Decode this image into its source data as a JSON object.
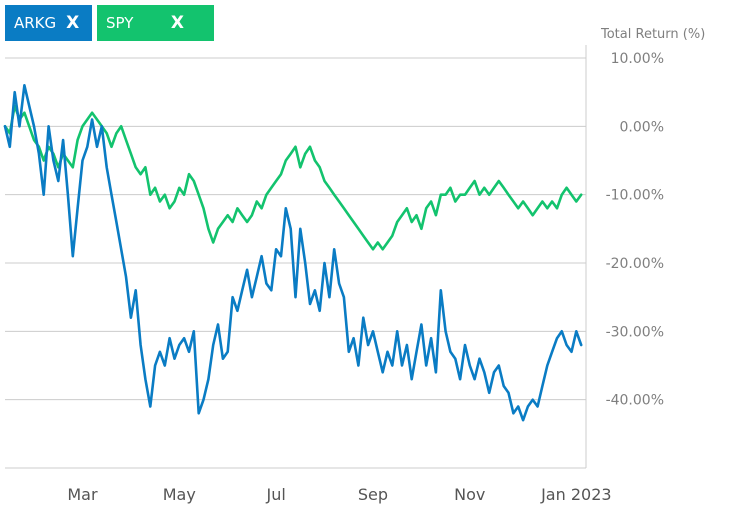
{
  "legend": {
    "chips": [
      {
        "label": "ARKG",
        "close": "X",
        "color": "#0a7cc4"
      },
      {
        "label": "SPY",
        "close": "X",
        "color": "#13c36e"
      }
    ]
  },
  "chart_data": {
    "type": "line",
    "ylabel": "Total Return (%)",
    "ylim": [
      -50,
      10
    ],
    "y_ticks": [
      "10.00%",
      "0.00%",
      "-10.00%",
      "-20.00%",
      "-30.00%",
      "-40.00%"
    ],
    "y_tick_values": [
      10,
      0,
      -10,
      -20,
      -30,
      -40
    ],
    "x_ticks": [
      "Mar",
      "May",
      "Jul",
      "Sep",
      "Nov",
      "Jan 2023"
    ],
    "x_tick_positions": [
      1.6,
      3.6,
      5.6,
      7.6,
      9.6,
      11.8
    ],
    "xlim": [
      0,
      12
    ],
    "series": [
      {
        "name": "ARKG",
        "color": "#0a7cc4",
        "x": [
          0.0,
          0.1,
          0.2,
          0.3,
          0.4,
          0.5,
          0.6,
          0.7,
          0.8,
          0.9,
          1.0,
          1.1,
          1.2,
          1.3,
          1.4,
          1.5,
          1.6,
          1.7,
          1.8,
          1.9,
          2.0,
          2.1,
          2.2,
          2.3,
          2.4,
          2.5,
          2.6,
          2.7,
          2.8,
          2.9,
          3.0,
          3.1,
          3.2,
          3.3,
          3.4,
          3.5,
          3.6,
          3.7,
          3.8,
          3.9,
          4.0,
          4.1,
          4.2,
          4.3,
          4.4,
          4.5,
          4.6,
          4.7,
          4.8,
          4.9,
          5.0,
          5.1,
          5.2,
          5.3,
          5.4,
          5.5,
          5.6,
          5.7,
          5.8,
          5.9,
          6.0,
          6.1,
          6.2,
          6.3,
          6.4,
          6.5,
          6.6,
          6.7,
          6.8,
          6.9,
          7.0,
          7.1,
          7.2,
          7.3,
          7.4,
          7.5,
          7.6,
          7.7,
          7.8,
          7.9,
          8.0,
          8.1,
          8.2,
          8.3,
          8.4,
          8.5,
          8.6,
          8.7,
          8.8,
          8.9,
          9.0,
          9.1,
          9.2,
          9.3,
          9.4,
          9.5,
          9.6,
          9.7,
          9.8,
          9.9,
          10.0,
          10.1,
          10.2,
          10.3,
          10.4,
          10.5,
          10.6,
          10.7,
          10.8,
          10.9,
          11.0,
          11.1,
          11.2,
          11.3,
          11.4,
          11.5,
          11.6,
          11.7,
          11.8,
          11.9
        ],
        "values": [
          0.0,
          -3.0,
          5.0,
          0.0,
          6.0,
          3.0,
          0.0,
          -4.0,
          -10.0,
          0.0,
          -5.0,
          -8.0,
          -2.0,
          -10.0,
          -19.0,
          -12.0,
          -5.0,
          -3.0,
          1.0,
          -3.0,
          0.0,
          -6.0,
          -10.0,
          -14.0,
          -18.0,
          -22.0,
          -28.0,
          -24.0,
          -32.0,
          -37.0,
          -41.0,
          -35.0,
          -33.0,
          -35.0,
          -31.0,
          -34.0,
          -32.0,
          -31.0,
          -33.0,
          -30.0,
          -42.0,
          -40.0,
          -37.0,
          -32.0,
          -29.0,
          -34.0,
          -33.0,
          -25.0,
          -27.0,
          -24.0,
          -21.0,
          -25.0,
          -22.0,
          -19.0,
          -23.0,
          -24.0,
          -18.0,
          -19.0,
          -12.0,
          -15.0,
          -25.0,
          -15.0,
          -20.0,
          -26.0,
          -24.0,
          -27.0,
          -20.0,
          -25.0,
          -18.0,
          -23.0,
          -25.0,
          -33.0,
          -31.0,
          -35.0,
          -28.0,
          -32.0,
          -30.0,
          -33.0,
          -36.0,
          -33.0,
          -35.0,
          -30.0,
          -35.0,
          -32.0,
          -37.0,
          -33.0,
          -29.0,
          -35.0,
          -31.0,
          -36.0,
          -24.0,
          -30.0,
          -33.0,
          -34.0,
          -37.0,
          -32.0,
          -35.0,
          -37.0,
          -34.0,
          -36.0,
          -39.0,
          -36.0,
          -35.0,
          -38.0,
          -39.0,
          -42.0,
          -41.0,
          -43.0,
          -41.0,
          -40.0,
          -41.0,
          -38.0,
          -35.0,
          -33.0,
          -31.0,
          -30.0,
          -32.0,
          -33.0,
          -30.0,
          -32.0
        ]
      },
      {
        "name": "SPY",
        "color": "#13c36e",
        "x": [
          0.0,
          0.1,
          0.2,
          0.3,
          0.4,
          0.5,
          0.6,
          0.7,
          0.8,
          0.9,
          1.0,
          1.1,
          1.2,
          1.3,
          1.4,
          1.5,
          1.6,
          1.7,
          1.8,
          1.9,
          2.0,
          2.1,
          2.2,
          2.3,
          2.4,
          2.5,
          2.6,
          2.7,
          2.8,
          2.9,
          3.0,
          3.1,
          3.2,
          3.3,
          3.4,
          3.5,
          3.6,
          3.7,
          3.8,
          3.9,
          4.0,
          4.1,
          4.2,
          4.3,
          4.4,
          4.5,
          4.6,
          4.7,
          4.8,
          4.9,
          5.0,
          5.1,
          5.2,
          5.3,
          5.4,
          5.5,
          5.6,
          5.7,
          5.8,
          5.9,
          6.0,
          6.1,
          6.2,
          6.3,
          6.4,
          6.5,
          6.6,
          6.7,
          6.8,
          6.9,
          7.0,
          7.1,
          7.2,
          7.3,
          7.4,
          7.5,
          7.6,
          7.7,
          7.8,
          7.9,
          8.0,
          8.1,
          8.2,
          8.3,
          8.4,
          8.5,
          8.6,
          8.7,
          8.8,
          8.9,
          9.0,
          9.1,
          9.2,
          9.3,
          9.4,
          9.5,
          9.6,
          9.7,
          9.8,
          9.9,
          10.0,
          10.1,
          10.2,
          10.3,
          10.4,
          10.5,
          10.6,
          10.7,
          10.8,
          10.9,
          11.0,
          11.1,
          11.2,
          11.3,
          11.4,
          11.5,
          11.6,
          11.7,
          11.8,
          11.9
        ],
        "values": [
          0.0,
          -1.0,
          3.0,
          1.0,
          2.0,
          0.0,
          -2.0,
          -3.0,
          -5.0,
          -3.0,
          -4.0,
          -6.0,
          -4.0,
          -5.0,
          -6.0,
          -2.0,
          0.0,
          1.0,
          2.0,
          1.0,
          0.0,
          -1.0,
          -3.0,
          -1.0,
          0.0,
          -2.0,
          -4.0,
          -6.0,
          -7.0,
          -6.0,
          -10.0,
          -9.0,
          -11.0,
          -10.0,
          -12.0,
          -11.0,
          -9.0,
          -10.0,
          -7.0,
          -8.0,
          -10.0,
          -12.0,
          -15.0,
          -17.0,
          -15.0,
          -14.0,
          -13.0,
          -14.0,
          -12.0,
          -13.0,
          -14.0,
          -13.0,
          -11.0,
          -12.0,
          -10.0,
          -9.0,
          -8.0,
          -7.0,
          -5.0,
          -4.0,
          -3.0,
          -6.0,
          -4.0,
          -3.0,
          -5.0,
          -6.0,
          -8.0,
          -9.0,
          -10.0,
          -11.0,
          -12.0,
          -13.0,
          -14.0,
          -15.0,
          -16.0,
          -17.0,
          -18.0,
          -17.0,
          -18.0,
          -17.0,
          -16.0,
          -14.0,
          -13.0,
          -12.0,
          -14.0,
          -13.0,
          -15.0,
          -12.0,
          -11.0,
          -13.0,
          -10.0,
          -10.0,
          -9.0,
          -11.0,
          -10.0,
          -10.0,
          -9.0,
          -8.0,
          -10.0,
          -9.0,
          -10.0,
          -9.0,
          -8.0,
          -9.0,
          -10.0,
          -11.0,
          -12.0,
          -11.0,
          -12.0,
          -13.0,
          -12.0,
          -11.0,
          -12.0,
          -11.0,
          -12.0,
          -10.0,
          -9.0,
          -10.0,
          -11.0,
          -10.0
        ]
      }
    ]
  }
}
